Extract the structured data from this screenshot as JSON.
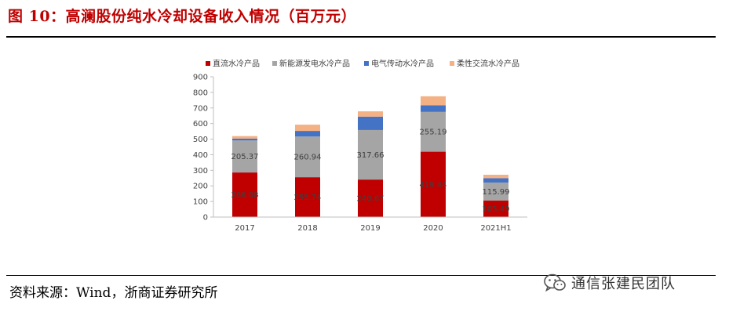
{
  "figure_title": "图 10：高澜股份纯水冷却设备收入情况（百万元）",
  "source_note": "资料来源：Wind，浙商证券研究所",
  "watermark": "通信张建民团队",
  "colors": {
    "title": "#c00000",
    "series": [
      "#c00000",
      "#a5a5a5",
      "#4472c4",
      "#f4b183"
    ],
    "label_text": "#404040"
  },
  "chart_data": {
    "type": "bar",
    "stacked": true,
    "title": "",
    "xlabel": "",
    "ylabel": "",
    "categories": [
      "2017",
      "2018",
      "2019",
      "2020",
      "2021H1"
    ],
    "ylim": [
      0,
      900
    ],
    "yticks": [
      0,
      100,
      200,
      300,
      400,
      500,
      600,
      700,
      800,
      900
    ],
    "legend_position": "top",
    "grid": false,
    "series": [
      {
        "name": "直流水冷产品",
        "values": [
          286.08,
          255.74,
          240.67,
          419.44,
          105.49
        ],
        "labeled": true
      },
      {
        "name": "新能源发电水冷产品",
        "values": [
          205.37,
          260.94,
          317.66,
          255.19,
          115.99
        ],
        "labeled": true
      },
      {
        "name": "电气传动水冷产品",
        "values": [
          12,
          36,
          86,
          42,
          28
        ],
        "labeled": false
      },
      {
        "name": "柔性交流水冷产品",
        "values": [
          16,
          40,
          34,
          58,
          22
        ],
        "labeled": false
      }
    ]
  }
}
